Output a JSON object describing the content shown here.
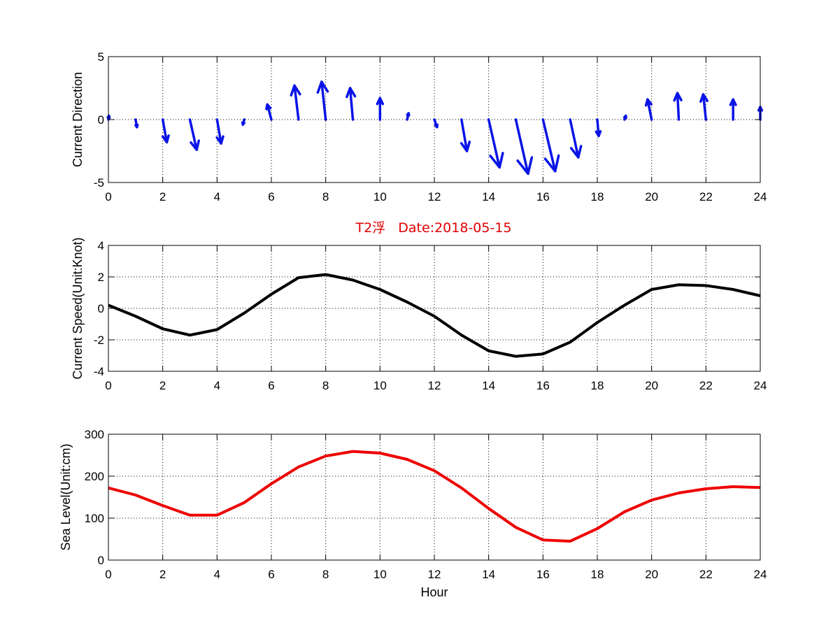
{
  "title": "T2浮   Date:2018-05-15",
  "chart_data": [
    {
      "type": "quiver",
      "ylabel": "Current Direction",
      "xlabel": "",
      "xlim": [
        0,
        24
      ],
      "ylim": [
        -5,
        5
      ],
      "xticks": [
        "0",
        "2",
        "4",
        "6",
        "8",
        "10",
        "12",
        "14",
        "16",
        "18",
        "20",
        "22",
        "24"
      ],
      "yticks": [
        "-5",
        "0",
        "5"
      ],
      "ytick_values": [
        -5,
        0,
        5
      ],
      "grid": true,
      "color": "#0a14e6",
      "x": [
        0,
        1,
        2,
        3,
        4,
        5,
        6,
        7,
        8,
        9,
        10,
        11,
        12,
        13,
        14,
        15,
        16,
        17,
        18,
        19,
        20,
        21,
        22,
        23,
        24
      ],
      "u": [
        0.02,
        0.05,
        0.15,
        0.25,
        0.15,
        -0.05,
        -0.15,
        -0.15,
        -0.15,
        -0.1,
        0,
        0.05,
        0.1,
        0.2,
        0.4,
        0.45,
        0.45,
        0.3,
        0.05,
        0.05,
        -0.15,
        -0.05,
        -0.1,
        0,
        0
      ],
      "v": [
        0.3,
        -0.6,
        -1.8,
        -2.4,
        -1.9,
        -0.4,
        1.2,
        2.7,
        3.0,
        2.5,
        1.7,
        0.5,
        -0.6,
        -2.5,
        -3.8,
        -4.3,
        -4.1,
        -3.0,
        -1.3,
        0.3,
        1.6,
        2.1,
        2.0,
        1.6,
        1.0
      ]
    },
    {
      "type": "line",
      "ylabel": "Current Speed(Unit:Knot)",
      "xlabel": "",
      "xlim": [
        0,
        24
      ],
      "ylim": [
        -4,
        4
      ],
      "xticks": [
        "0",
        "2",
        "4",
        "6",
        "8",
        "10",
        "12",
        "14",
        "16",
        "18",
        "20",
        "22",
        "24"
      ],
      "yticks": [
        "-4",
        "-2",
        "0",
        "2",
        "4"
      ],
      "ytick_values": [
        -4,
        -2,
        0,
        2,
        4
      ],
      "grid": true,
      "color": "#000000",
      "x": [
        0,
        1,
        2,
        3,
        4,
        5,
        6,
        7,
        8,
        9,
        10,
        11,
        12,
        13,
        14,
        15,
        16,
        17,
        18,
        19,
        20,
        21,
        22,
        23,
        24
      ],
      "y": [
        0.2,
        -0.5,
        -1.3,
        -1.7,
        -1.35,
        -0.3,
        0.9,
        1.95,
        2.15,
        1.8,
        1.2,
        0.4,
        -0.5,
        -1.7,
        -2.7,
        -3.05,
        -2.9,
        -2.15,
        -0.9,
        0.2,
        1.2,
        1.5,
        1.45,
        1.2,
        0.8
      ]
    },
    {
      "type": "line",
      "ylabel": "Sea Level(Unit:cm)",
      "xlabel": "Hour",
      "xlim": [
        0,
        24
      ],
      "ylim": [
        0,
        300
      ],
      "xticks": [
        "0",
        "2",
        "4",
        "6",
        "8",
        "10",
        "12",
        "14",
        "16",
        "18",
        "20",
        "22",
        "24"
      ],
      "yticks": [
        "0",
        "100",
        "200",
        "300"
      ],
      "ytick_values": [
        0,
        100,
        200,
        300
      ],
      "grid": true,
      "color": "#ee0000",
      "x": [
        0,
        1,
        2,
        3,
        4,
        5,
        6,
        7,
        8,
        9,
        10,
        11,
        12,
        13,
        14,
        15,
        16,
        17,
        18,
        19,
        20,
        21,
        22,
        23,
        24
      ],
      "y": [
        172,
        155,
        130,
        107,
        107,
        137,
        182,
        222,
        248,
        259,
        255,
        240,
        213,
        172,
        123,
        78,
        48,
        45,
        75,
        115,
        143,
        160,
        170,
        175,
        173
      ]
    }
  ]
}
